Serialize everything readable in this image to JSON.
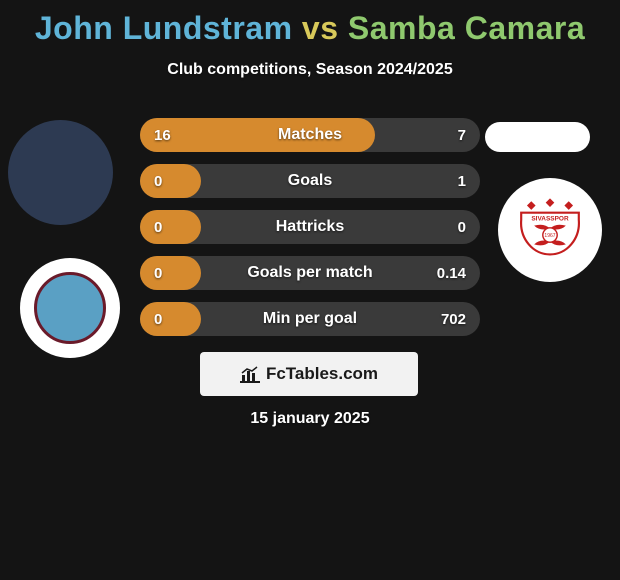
{
  "colors": {
    "background": "#141414",
    "title_p1": "#5fb4d8",
    "title_vs": "#d8c95a",
    "title_p2": "#8fc96e",
    "subtitle": "#ffffff",
    "bar_bg": "#3a3a3a",
    "bar_fill": "#d68a2e",
    "bar_text": "#ffffff",
    "watermark_bg": "#f2f2f2",
    "watermark_text": "#1a1a1a",
    "date_text": "#ffffff",
    "avatar_left_bg": "#2d3a52",
    "avatar_right_bg": "#ffffff",
    "logo_left_bg": "#ffffff",
    "logo_left_ring": "#6a1a2a",
    "logo_left_inner": "#5aa0c4",
    "logo_right_bg": "#ffffff",
    "logo_right_red": "#c41e1e"
  },
  "title": {
    "player1": "John Lundstram",
    "vs": "vs",
    "player2": "Samba Camara"
  },
  "subtitle": "Club competitions, Season 2024/2025",
  "bars": [
    {
      "label": "Matches",
      "left": "16",
      "right": "7",
      "fill_pct": 69
    },
    {
      "label": "Goals",
      "left": "0",
      "right": "1",
      "fill_pct": 18
    },
    {
      "label": "Hattricks",
      "left": "0",
      "right": "0",
      "fill_pct": 18
    },
    {
      "label": "Goals per match",
      "left": "0",
      "right": "0.14",
      "fill_pct": 18
    },
    {
      "label": "Min per goal",
      "left": "0",
      "right": "702",
      "fill_pct": 18
    }
  ],
  "watermark": "FcTables.com",
  "date": "15 january 2025",
  "logo_right_text": "SIVASSPOR",
  "logo_right_year": "1967"
}
